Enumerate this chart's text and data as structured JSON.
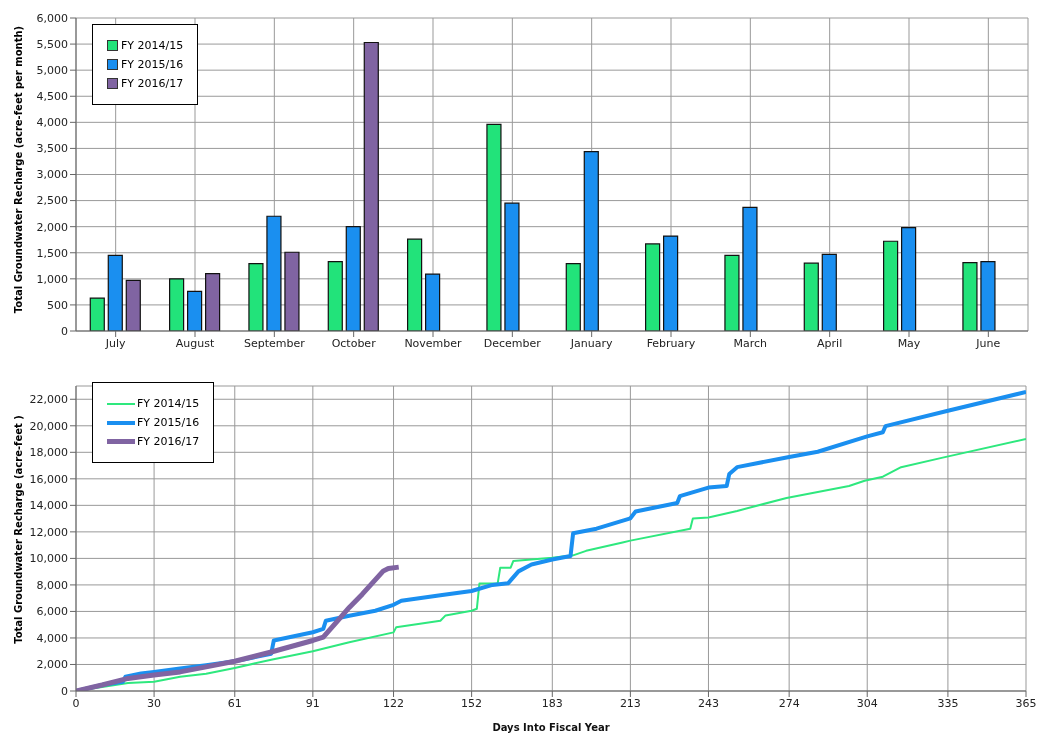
{
  "chart_data": [
    {
      "type": "bar",
      "ylabel": "Total Groundwater Recharge (acre-feet per month)",
      "categories": [
        "July",
        "August",
        "September",
        "October",
        "November",
        "December",
        "January",
        "February",
        "March",
        "April",
        "May",
        "June"
      ],
      "series": [
        {
          "name": "FY 2014/15",
          "color": "#22e37a",
          "values": [
            630,
            1000,
            1290,
            1330,
            1760,
            3960,
            1290,
            1670,
            1450,
            1300,
            1720,
            1310
          ]
        },
        {
          "name": "FY 2015/16",
          "color": "#1a8ff0",
          "values": [
            1450,
            760,
            2200,
            2000,
            1090,
            2450,
            3440,
            1820,
            2370,
            1470,
            1980,
            1330
          ]
        },
        {
          "name": "FY 2016/17",
          "color": "#8064a2",
          "values": [
            970,
            1100,
            1510,
            5530,
            null,
            null,
            null,
            null,
            null,
            null,
            null,
            null
          ]
        }
      ],
      "ylim": [
        0,
        6000
      ],
      "yticks": [
        {
          "value": 0,
          "label": "0"
        },
        {
          "value": 500,
          "label": "500"
        },
        {
          "value": 1000,
          "label": "1,000"
        },
        {
          "value": 1500,
          "label": "1,500"
        },
        {
          "value": 2000,
          "label": "2,000"
        },
        {
          "value": 2500,
          "label": "2,500"
        },
        {
          "value": 3000,
          "label": "3,000"
        },
        {
          "value": 3500,
          "label": "3,500"
        },
        {
          "value": 4000,
          "label": "4,000"
        },
        {
          "value": 4500,
          "label": "4,500"
        },
        {
          "value": 5000,
          "label": "5,000"
        },
        {
          "value": 5500,
          "label": "5,500"
        },
        {
          "value": 6000,
          "label": "6,000"
        }
      ],
      "grid": true,
      "legend": "top left"
    },
    {
      "type": "line",
      "xlabel": "Days Into Fiscal Year",
      "ylabel": "Total Groundwater Recharge (acre-feet )",
      "series": [
        {
          "name": "FY 2014/15",
          "color": "#2ee87e",
          "x": [
            0,
            20,
            30,
            40,
            50,
            61,
            75,
            91,
            105,
            122,
            123,
            140,
            142,
            152,
            154,
            155,
            162,
            163,
            167,
            168,
            183,
            191,
            196,
            210,
            213,
            236,
            237,
            243,
            254,
            273,
            297,
            303,
            310,
            317,
            333,
            365
          ],
          "values": [
            0,
            600,
            700,
            1070,
            1300,
            1740,
            2360,
            3000,
            3680,
            4420,
            4800,
            5300,
            5700,
            6050,
            6200,
            8100,
            8100,
            9300,
            9300,
            9800,
            10050,
            10230,
            10570,
            11200,
            11340,
            12240,
            13000,
            13090,
            13580,
            14560,
            15460,
            15850,
            16160,
            16880,
            17600,
            19000
          ]
        },
        {
          "name": "FY 2015/16",
          "color": "#1a8ff0",
          "x": [
            0,
            10,
            18,
            19,
            25,
            30,
            40,
            50,
            61,
            75,
            76,
            91,
            95,
            96,
            105,
            115,
            122,
            125,
            140,
            152,
            160,
            166,
            170,
            175,
            183,
            190,
            191,
            200,
            213,
            215,
            231,
            232,
            243,
            250,
            251,
            254,
            274,
            285,
            304,
            310,
            311,
            335,
            365
          ],
          "values": [
            0,
            450,
            700,
            1070,
            1320,
            1440,
            1700,
            1940,
            2240,
            2810,
            3810,
            4430,
            4680,
            5300,
            5680,
            6050,
            6500,
            6800,
            7220,
            7540,
            8000,
            8120,
            9020,
            9540,
            9920,
            10180,
            11900,
            12240,
            13020,
            13530,
            14180,
            14690,
            15340,
            15460,
            16370,
            16880,
            17650,
            18040,
            19200,
            19510,
            19970,
            21130,
            22550
          ]
        },
        {
          "name": "FY 2016/17",
          "color": "#8064a2",
          "x": [
            0,
            10,
            20,
            30,
            40,
            50,
            61,
            75,
            91,
            95,
            100,
            105,
            110,
            118,
            120,
            124
          ],
          "values": [
            0,
            450,
            950,
            1200,
            1440,
            1820,
            2240,
            2940,
            3810,
            4060,
            5180,
            6300,
            7300,
            9040,
            9240,
            9340
          ]
        }
      ],
      "xlim": [
        0,
        365
      ],
      "xticks": [
        0,
        30,
        61,
        91,
        122,
        152,
        183,
        213,
        243,
        274,
        304,
        335,
        365
      ],
      "ylim": [
        0,
        23000
      ],
      "yticks": [
        {
          "value": 0,
          "label": "0"
        },
        {
          "value": 2000,
          "label": "2,000"
        },
        {
          "value": 4000,
          "label": "4,000"
        },
        {
          "value": 6000,
          "label": "6,000"
        },
        {
          "value": 8000,
          "label": "8,000"
        },
        {
          "value": 10000,
          "label": "10,000"
        },
        {
          "value": 12000,
          "label": "12,000"
        },
        {
          "value": 14000,
          "label": "14,000"
        },
        {
          "value": 16000,
          "label": "16,000"
        },
        {
          "value": 18000,
          "label": "18,000"
        },
        {
          "value": 20000,
          "label": "20,000"
        },
        {
          "value": 22000,
          "label": "22,000"
        }
      ],
      "grid": true,
      "legend": "top left"
    }
  ]
}
